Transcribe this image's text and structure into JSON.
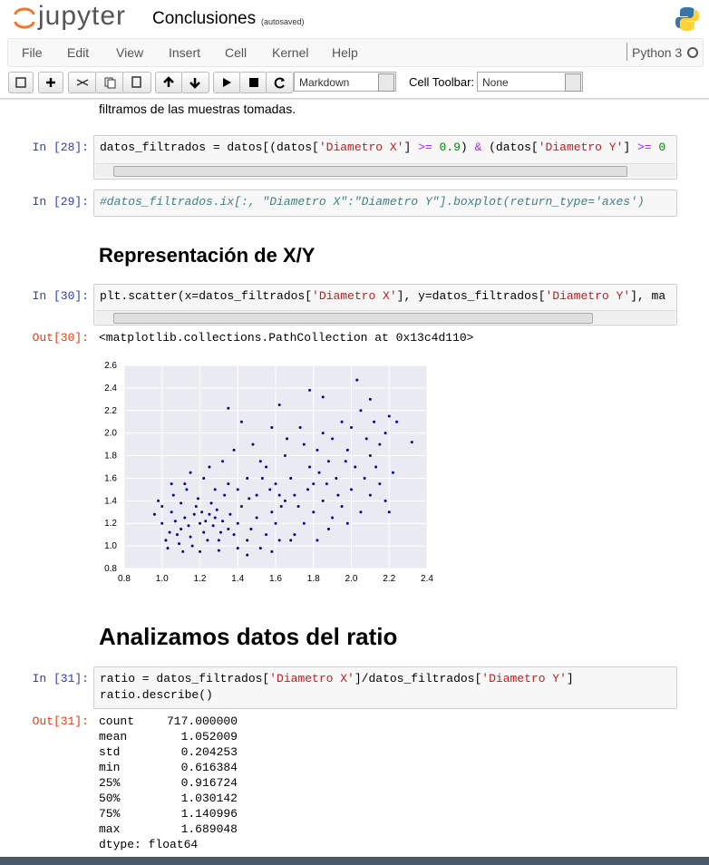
{
  "header": {
    "logo": "jupyter",
    "notebook_name": "Conclusiones",
    "status": "(autosaved)"
  },
  "menu": {
    "items": [
      "File",
      "Edit",
      "View",
      "Insert",
      "Cell",
      "Kernel",
      "Help"
    ],
    "kernel": "Python 3"
  },
  "toolbar": {
    "cell_type": "Markdown",
    "cell_toolbar_label": "Cell Toolbar:",
    "cell_toolbar": "None"
  },
  "cells": [
    {
      "type": "markdown",
      "text": "filtramos de las muestras tomadas."
    },
    {
      "type": "code",
      "prompt": "In [28]:",
      "code": [
        [
          {
            "text": "datos_filtrados = datos[(datos[",
            "style": "plain"
          },
          {
            "text": "'Diametro X'",
            "style": "str"
          },
          {
            "text": "] ",
            "style": "plain"
          },
          {
            "text": ">=",
            "style": "op"
          },
          {
            "text": " ",
            "style": "plain"
          },
          {
            "text": "0.9",
            "style": "num"
          },
          {
            "text": ") ",
            "style": "plain"
          },
          {
            "text": "&",
            "style": "op"
          },
          {
            "text": " (datos[",
            "style": "plain"
          },
          {
            "text": "'Diametro Y'",
            "style": "str"
          },
          {
            "text": "] ",
            "style": "plain"
          },
          {
            "text": ">=",
            "style": "op"
          },
          {
            "text": " ",
            "style": "plain"
          },
          {
            "text": "0",
            "style": "num"
          }
        ]
      ]
    },
    {
      "type": "code",
      "prompt": "In [29]:",
      "code": [
        [
          {
            "text": "#datos_filtrados.ix[:, \"Diametro X\":\"Diametro Y\"].boxplot(return_type='axes')",
            "style": "comment"
          }
        ]
      ]
    },
    {
      "type": "heading",
      "text": "Representación de X/Y"
    },
    {
      "type": "code",
      "prompt": "In [30]:",
      "code": [
        [
          {
            "text": "plt.scatter(x=datos_filtrados[",
            "style": "plain"
          },
          {
            "text": "'Diametro X'",
            "style": "str"
          },
          {
            "text": "], y=datos_filtrados[",
            "style": "plain"
          },
          {
            "text": "'Diametro Y'",
            "style": "str"
          },
          {
            "text": "], ma",
            "style": "plain"
          }
        ]
      ],
      "output_prompt": "Out[30]:",
      "output": "<matplotlib.collections.PathCollection at 0x13c4d110>",
      "chart_data": {
        "type": "scatter",
        "color": "#00008b",
        "grid": true,
        "xlim": [
          0.8,
          2.4
        ],
        "xticks": [
          0.8,
          {
            "value": 1,
            "label": "1.0"
          },
          1.2,
          1.4,
          1.6,
          1.8,
          {
            "value": 2,
            "label": "2.0"
          },
          2.2,
          2.4
        ],
        "ylim": [
          0.8,
          2.6
        ],
        "yticks": [
          0.8,
          {
            "value": 1,
            "label": "1.0"
          },
          1.2,
          1.4,
          1.6,
          1.8,
          {
            "value": 2,
            "label": "2.0"
          },
          2.2,
          2.4,
          2.6
        ],
        "x": [
          1.0,
          1.02,
          1.05,
          1.08,
          1.1,
          1.12,
          1.15,
          1.18,
          1.2,
          1.22,
          1.25,
          1.27,
          1.3,
          1.32,
          1.35,
          1.0,
          0.98,
          1.03,
          1.06,
          1.09,
          1.13,
          1.16,
          1.19,
          1.21,
          1.24,
          1.26,
          1.28,
          1.31,
          1.33,
          1.36,
          1.38,
          1.4,
          1.42,
          1.45,
          1.47,
          1.5,
          1.52,
          1.55,
          1.58,
          1.6,
          1.62,
          1.65,
          1.1,
          1.14,
          1.17,
          1.23,
          1.29,
          1.07,
          1.04,
          0.96,
          1.11,
          1.2,
          1.3,
          1.4,
          1.12,
          1.22,
          1.28,
          1.35,
          1.25,
          1.32,
          1.4,
          1.45,
          1.5,
          1.55,
          1.6,
          1.65,
          1.68,
          1.7,
          1.72,
          1.75,
          1.78,
          1.8,
          1.82,
          1.85,
          1.88,
          1.9,
          1.92,
          1.95,
          1.98,
          2.0,
          2.02,
          2.05,
          2.08,
          2.1,
          2.12,
          2.15,
          2.18,
          2.2,
          2.22,
          2.24,
          2.0,
          1.95,
          1.9,
          1.85,
          1.8,
          1.75,
          1.7,
          1.68,
          2.05,
          2.1,
          2.15,
          1.48,
          1.38,
          1.42,
          1.58,
          1.62,
          1.78,
          1.85,
          1.35,
          2.03,
          2.1,
          2.32,
          1.52,
          1.66,
          1.73,
          1.87,
          1.93,
          2.07,
          1.57,
          1.63,
          1.53,
          1.77,
          1.83,
          1.97,
          2.13,
          2.18,
          1.98,
          1.88,
          1.82,
          2.2,
          1.45,
          1.58,
          1.62,
          1.46,
          1.15,
          1.05
        ],
        "values": [
          1.2,
          1.05,
          1.3,
          1.1,
          1.15,
          1.25,
          1.08,
          1.35,
          1.2,
          1.12,
          1.28,
          1.18,
          1.05,
          1.22,
          1.15,
          1.35,
          1.4,
          0.98,
          1.45,
          1.02,
          1.5,
          1.0,
          1.42,
          1.3,
          1.05,
          1.38,
          1.25,
          1.12,
          1.45,
          1.28,
          1.1,
          1.2,
          1.35,
          1.05,
          1.15,
          1.25,
          0.98,
          1.1,
          1.3,
          1.2,
          1.05,
          1.4,
          1.38,
          1.18,
          1.28,
          1.22,
          1.32,
          1.22,
          1.12,
          1.28,
          0.95,
          0.95,
          0.96,
          0.98,
          1.55,
          1.6,
          1.5,
          1.55,
          1.7,
          1.75,
          1.5,
          1.6,
          1.45,
          1.7,
          1.55,
          1.8,
          1.6,
          1.45,
          1.35,
          1.9,
          1.7,
          1.55,
          1.85,
          2.0,
          1.75,
          1.95,
          1.6,
          2.1,
          1.85,
          2.05,
          1.7,
          2.2,
          1.95,
          1.8,
          2.1,
          1.9,
          2.0,
          2.15,
          1.65,
          2.1,
          1.5,
          1.35,
          1.25,
          1.4,
          1.3,
          1.2,
          1.1,
          1.05,
          1.3,
          1.45,
          1.55,
          1.9,
          1.85,
          2.1,
          2.05,
          2.25,
          2.38,
          2.32,
          2.22,
          2.47,
          2.3,
          1.92,
          1.75,
          1.95,
          2.05,
          1.55,
          1.45,
          1.6,
          1.5,
          1.35,
          1.6,
          1.5,
          1.65,
          1.75,
          1.7,
          1.4,
          1.2,
          1.15,
          1.05,
          1.3,
          0.92,
          0.95,
          1.45,
          1.42,
          1.65,
          1.55
        ]
      }
    },
    {
      "type": "heading",
      "text": "Analizamos datos del ratio"
    },
    {
      "type": "code",
      "prompt": "In [31]:",
      "code": [
        [
          {
            "text": "ratio = datos_filtrados[",
            "style": "plain"
          },
          {
            "text": "'Diametro X'",
            "style": "str"
          },
          {
            "text": "]/datos_filtrados[",
            "style": "plain"
          },
          {
            "text": "'Diametro Y'",
            "style": "str"
          },
          {
            "text": "]",
            "style": "plain"
          }
        ],
        [
          {
            "text": "ratio.describe()",
            "style": "plain"
          }
        ]
      ],
      "output_prompt": "Out[31]:",
      "output_rows": [
        [
          "count",
          "717.000000"
        ],
        [
          "mean",
          "1.052009"
        ],
        [
          "std",
          "0.204253"
        ],
        [
          "min",
          "0.616384"
        ],
        [
          "25%",
          "0.916724"
        ],
        [
          "50%",
          "1.030142"
        ],
        [
          "75%",
          "1.140996"
        ],
        [
          "max",
          "1.689048"
        ]
      ],
      "output_dtype": "dtype: float64"
    }
  ]
}
